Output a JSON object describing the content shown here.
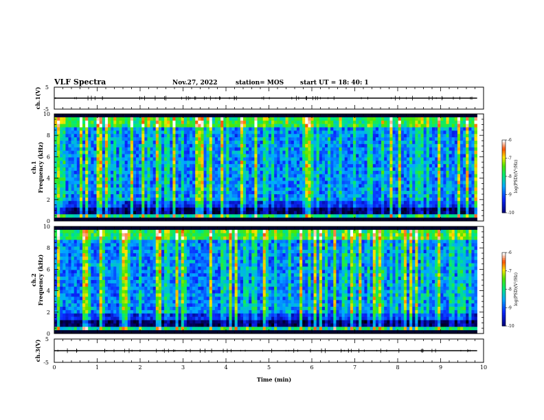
{
  "header": {
    "title": "VLF Spectra",
    "date": "Nov.27, 2022",
    "station": "station= MOS",
    "start": "start  UT  =   18: 40: 1"
  },
  "chart_data": [
    {
      "type": "line",
      "ylabel": "ch.1(V)",
      "yticks": [
        "5",
        "-5"
      ],
      "ylim": [
        -5,
        5
      ],
      "x": [
        0,
        9.85
      ],
      "values": [
        0,
        0
      ]
    },
    {
      "type": "heatmap",
      "ylabel": "ch.1\nFrequency (kHz)",
      "ylim": [
        0,
        10
      ],
      "yticks": [
        "10",
        "8",
        "6",
        "4",
        "2",
        "0"
      ],
      "xlim": [
        0,
        10
      ],
      "data_extent_min": 9.85,
      "colorbar": {
        "label": "log(PSD)(V²/Hz)",
        "ticks": [
          "-6",
          "-7",
          "-8",
          "-9",
          "-10"
        ],
        "range": [
          -10,
          -6
        ]
      }
    },
    {
      "type": "heatmap",
      "ylabel": "ch.2\nFrequency (kHz)",
      "ylim": [
        0,
        10
      ],
      "yticks": [
        "10",
        "8",
        "6",
        "4",
        "2",
        "0"
      ],
      "xlim": [
        0,
        10
      ],
      "data_extent_min": 9.85,
      "colorbar": {
        "label": "log(PSD)(V²/Hz)",
        "ticks": [
          "-6",
          "-7",
          "-8",
          "-9",
          "-10"
        ],
        "range": [
          -10,
          -6
        ]
      }
    },
    {
      "type": "line",
      "ylabel": "ch.3(V)",
      "yticks": [
        "5",
        "-5"
      ],
      "ylim": [
        -5,
        5
      ],
      "x": [
        0,
        9.85
      ],
      "values": [
        0,
        0
      ]
    }
  ],
  "xaxis": {
    "label": "Time  (min)",
    "ticks": [
      "0",
      "1",
      "2",
      "3",
      "4",
      "5",
      "6",
      "7",
      "8",
      "9",
      "10"
    ],
    "range": [
      0,
      10
    ]
  }
}
